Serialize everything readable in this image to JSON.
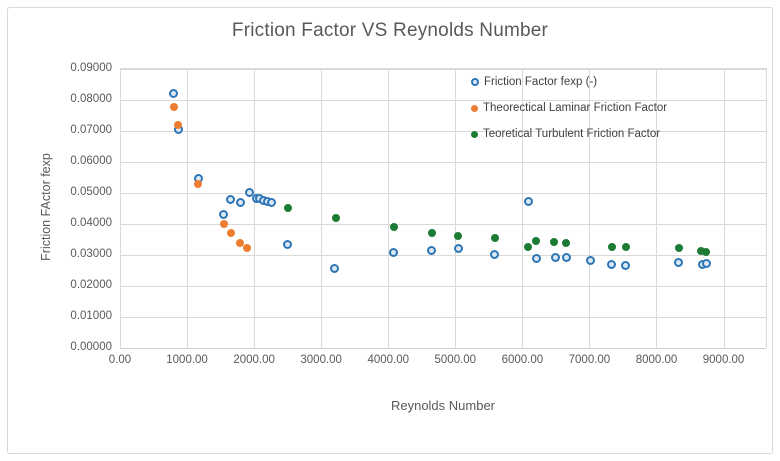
{
  "title": "Friction Factor VS Reynolds Number",
  "colors": {
    "title_text": "#595959",
    "axis_text": "#595959",
    "gridline": "#d9d9d9",
    "series_experimental_border": "#2e75b6",
    "series_experimental_fill": "#dbe9f6",
    "series_laminar": "#ed7d31",
    "series_turbulent": "#1e7b34"
  },
  "chart_data": {
    "type": "scatter",
    "title": "Friction Factor VS Reynolds Number",
    "xlabel": "Reynolds Number",
    "ylabel": "Friction FActor fexp",
    "xlim": [
      0,
      9633
    ],
    "ylim": [
      0,
      0.09
    ],
    "grid": true,
    "legend_position": "inside-top-right",
    "x_ticks": [
      0,
      1000,
      2000,
      3000,
      4000,
      5000,
      6000,
      7000,
      8000,
      9000
    ],
    "x_tick_labels": [
      "0.00",
      "1000.00",
      "2000.00",
      "3000.00",
      "4000.00",
      "5000.00",
      "6000.00",
      "7000.00",
      "8000.00",
      "9000.00"
    ],
    "y_ticks": [
      0,
      0.01,
      0.02,
      0.03,
      0.04,
      0.05,
      0.06,
      0.07,
      0.08,
      0.09
    ],
    "y_tick_labels": [
      "0.00000",
      "0.01000",
      "0.02000",
      "0.03000",
      "0.04000",
      "0.05000",
      "0.06000",
      "0.07000",
      "0.08000",
      "0.09000"
    ],
    "series": [
      {
        "name": "Friction Factor fexp (-)",
        "marker": "circle-open",
        "color": "#2e75b6",
        "fill": "#dbe9f6",
        "points": [
          [
            800,
            0.082
          ],
          [
            865,
            0.0706
          ],
          [
            1170,
            0.0548
          ],
          [
            1545,
            0.043
          ],
          [
            1650,
            0.0478
          ],
          [
            1800,
            0.047
          ],
          [
            1925,
            0.0501
          ],
          [
            2030,
            0.0481
          ],
          [
            2080,
            0.0483
          ],
          [
            2135,
            0.0476
          ],
          [
            2195,
            0.0473
          ],
          [
            2255,
            0.047
          ],
          [
            2505,
            0.0335
          ],
          [
            3205,
            0.0257
          ],
          [
            4085,
            0.0308
          ],
          [
            4650,
            0.0314
          ],
          [
            5045,
            0.0322
          ],
          [
            5590,
            0.0303
          ],
          [
            6090,
            0.0473
          ],
          [
            6215,
            0.029
          ],
          [
            6490,
            0.0293
          ],
          [
            6660,
            0.0293
          ],
          [
            7010,
            0.0281
          ],
          [
            7335,
            0.0268
          ],
          [
            7545,
            0.0267
          ],
          [
            8330,
            0.0275
          ],
          [
            8680,
            0.0268
          ],
          [
            8750,
            0.0272
          ]
        ]
      },
      {
        "name": "Theorectical Laminar Friction Factor",
        "marker": "circle-solid",
        "color": "#ed7d31",
        "points": [
          [
            800,
            0.0777
          ],
          [
            865,
            0.072
          ],
          [
            1160,
            0.0528
          ],
          [
            1545,
            0.0401
          ],
          [
            1650,
            0.0372
          ],
          [
            1785,
            0.0338
          ],
          [
            1900,
            0.0322
          ]
        ]
      },
      {
        "name": "Teoretical Turbulent Friction Factor",
        "marker": "circle-solid",
        "color": "#1e7b34",
        "points": [
          [
            2505,
            0.0452
          ],
          [
            3215,
            0.0418
          ],
          [
            4085,
            0.0389
          ],
          [
            4650,
            0.0372
          ],
          [
            5045,
            0.0361
          ],
          [
            5590,
            0.0355
          ],
          [
            6080,
            0.0327
          ],
          [
            6205,
            0.0344
          ],
          [
            6475,
            0.0342
          ],
          [
            6650,
            0.034
          ],
          [
            7335,
            0.0327
          ],
          [
            7545,
            0.0325
          ],
          [
            8330,
            0.0322
          ],
          [
            8665,
            0.0312
          ],
          [
            8740,
            0.031
          ]
        ]
      }
    ]
  }
}
